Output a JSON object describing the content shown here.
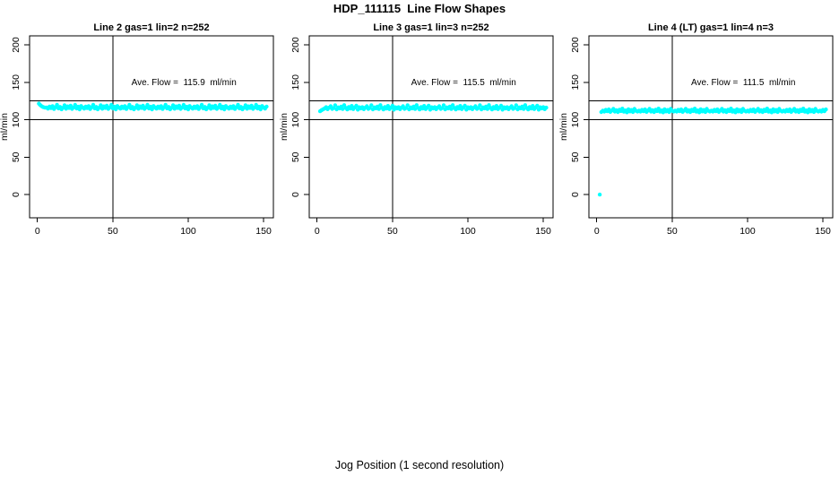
{
  "page": {
    "title": "HDP_111115  Line Flow Shapes",
    "xlabel": "Jog Position (1 second resolution)"
  },
  "colors": {
    "points": "#00FFFF",
    "axis": "#000000",
    "background": "#FFFFFF"
  },
  "chart_data": [
    {
      "type": "scatter",
      "title": "Line 2 gas=1 lin=2 n=252",
      "line": "Line 2",
      "gas": 1,
      "lin": 2,
      "n": 252,
      "annotation": "Ave. Flow =  115.9  ml/min",
      "ave_flow": 115.9,
      "ylabel": "ml/min",
      "x_ticks": [
        0,
        50,
        100,
        150
      ],
      "y_ticks": [
        0,
        50,
        100,
        150,
        200
      ],
      "xlim": [
        -5.2,
        156.5
      ],
      "ylim": [
        -31,
        212
      ],
      "ref_lines_h": [
        125,
        100
      ],
      "ref_line_v": 50,
      "prefix_points": [
        [
          1,
          121.5
        ],
        [
          1.7,
          119.9
        ],
        [
          2.4,
          118.6
        ],
        [
          3.2,
          117.5
        ],
        [
          4,
          116.7
        ],
        [
          5,
          116.1
        ]
      ],
      "band": {
        "x_start": 6,
        "x_end": 152,
        "x_step": 1,
        "y_mean": 115.9,
        "jitter_pattern": [
          0.3,
          -1.1,
          1.6,
          -0.4,
          2.2,
          -1.6,
          0.8,
          4.1,
          -0.7,
          1.2,
          -1.9,
          0.1,
          3.4,
          -1.2,
          1.9,
          -0.2,
          2.8,
          -1.5,
          0.6,
          3.9,
          -0.9,
          1.4,
          -2.1,
          2.4
        ]
      }
    },
    {
      "type": "scatter",
      "title": "Line 3 gas=1 lin=3 n=252",
      "line": "Line 3",
      "gas": 1,
      "lin": 3,
      "n": 252,
      "annotation": "Ave. Flow =  115.5  ml/min",
      "ave_flow": 115.5,
      "ylabel": "ml/min",
      "x_ticks": [
        0,
        50,
        100,
        150
      ],
      "y_ticks": [
        0,
        50,
        100,
        150,
        200
      ],
      "xlim": [
        -5.2,
        156.5
      ],
      "ylim": [
        -31,
        212
      ],
      "ref_lines_h": [
        125,
        100
      ],
      "ref_line_v": 50,
      "prefix_points": [
        [
          2,
          111.3
        ],
        [
          2.8,
          112.5
        ],
        [
          3.6,
          113.5
        ],
        [
          4.4,
          114.3
        ]
      ],
      "band": {
        "x_start": 5,
        "x_end": 152,
        "x_step": 1,
        "y_mean": 115.5,
        "jitter_pattern": [
          -0.5,
          1.2,
          -1.4,
          0.6,
          2.5,
          -1.0,
          0.2,
          3.8,
          -1.7,
          1.0,
          -0.3,
          2.0,
          -1.2,
          4.0,
          0.4,
          -1.8,
          1.5,
          -0.6,
          2.9,
          -1.3,
          0.7,
          3.3,
          -2.0,
          1.1
        ]
      }
    },
    {
      "type": "scatter",
      "title": "Line 4 (LT) gas=1 lin=4 n=3",
      "line": "Line 4 (LT)",
      "gas": 1,
      "lin": 4,
      "n": 3,
      "annotation": "Ave. Flow =  111.5  ml/min",
      "ave_flow": 111.5,
      "ylabel": "ml/min",
      "x_ticks": [
        0,
        50,
        100,
        150
      ],
      "y_ticks": [
        0,
        50,
        100,
        150,
        200
      ],
      "xlim": [
        -5.2,
        156.5
      ],
      "ylim": [
        -31,
        212
      ],
      "ref_lines_h": [
        125,
        100
      ],
      "ref_line_v": 50,
      "prefix_points": [
        [
          2,
          0
        ],
        [
          3,
          110.3
        ]
      ],
      "band": {
        "x_start": 4,
        "x_end": 152,
        "x_step": 1,
        "y_mean": 111.8,
        "jitter_pattern": [
          0.2,
          -0.9,
          1.3,
          -0.5,
          1.9,
          -1.3,
          0.5,
          2.8,
          -1.0,
          0.9,
          -1.6,
          1.5,
          -0.2,
          3.0,
          -1.1,
          0.6,
          -1.9,
          2.2,
          -0.7,
          1.2,
          -1.4,
          2.6,
          0.1,
          -0.8
        ]
      }
    }
  ]
}
